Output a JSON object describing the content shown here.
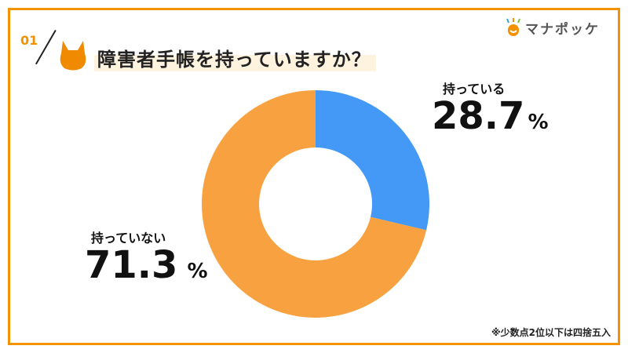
{
  "header": {
    "number": "01",
    "title": "障害者手帳を持っていますか？",
    "logo_text": "マナポッケ"
  },
  "chart_data": {
    "type": "pie",
    "title": "障害者手帳を持っていますか？",
    "categories": [
      "持っている",
      "持っていない"
    ],
    "values": [
      28.7,
      71.3
    ],
    "value_labels": [
      "28.7",
      "71.3"
    ],
    "unit": "%",
    "colors": [
      "#4499F6",
      "#F8A140"
    ],
    "donut": true
  },
  "footnote": "※少数点2位以下は四捨五入"
}
